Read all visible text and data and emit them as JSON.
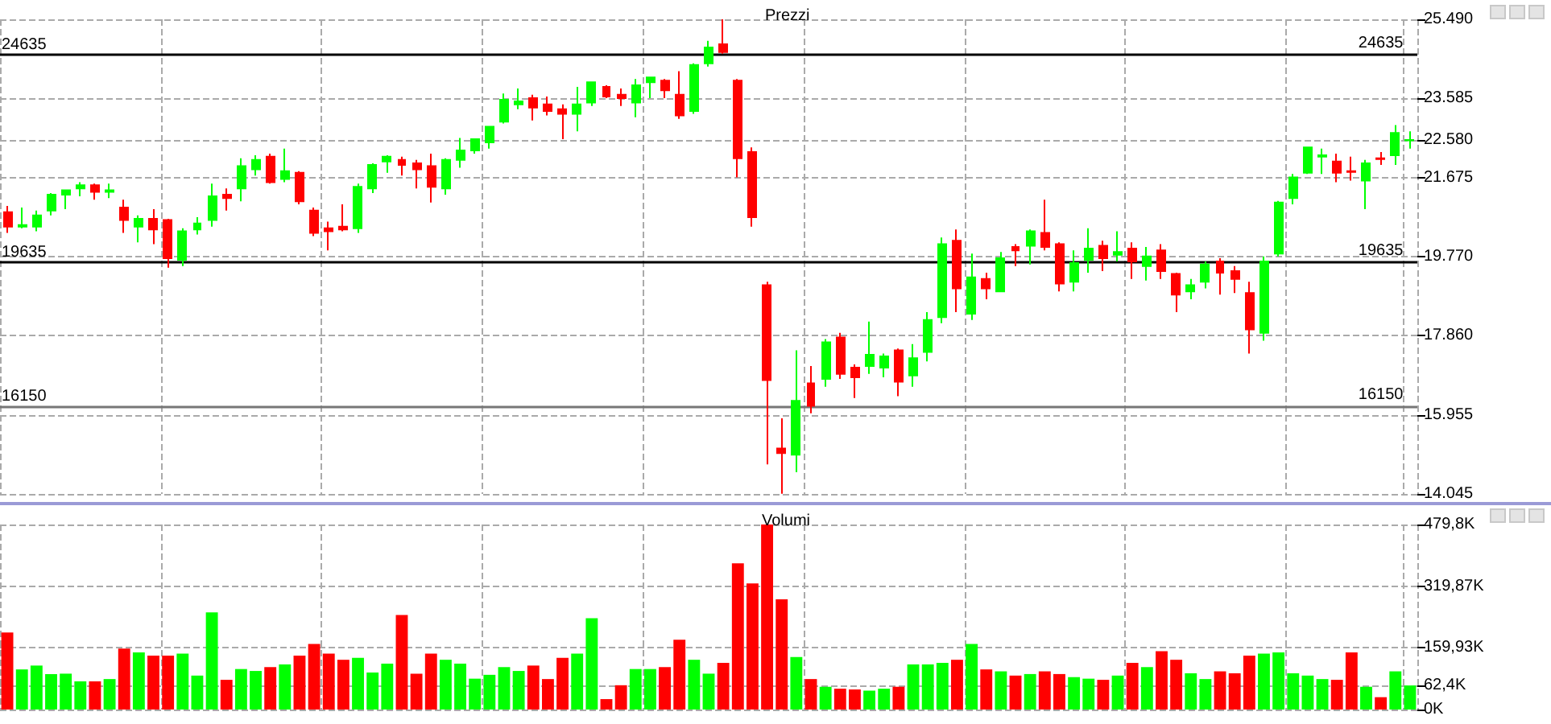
{
  "chart_data": [
    {
      "type": "candlestick",
      "title": "Prezzi",
      "categories": [
        null,
        null,
        null,
        null,
        null,
        null,
        null,
        null,
        null,
        null,
        null,
        null,
        null,
        null,
        null,
        null,
        null,
        null,
        null,
        null,
        null,
        null,
        null,
        null,
        null,
        null,
        null,
        null,
        null,
        null,
        null,
        null,
        null,
        null,
        null,
        null,
        null,
        null,
        null,
        null,
        null,
        null,
        null,
        null,
        null,
        null,
        null,
        null,
        null,
        null,
        null,
        null,
        null,
        null,
        null,
        null,
        null,
        null,
        null,
        null,
        null,
        null,
        null,
        null,
        null,
        null,
        null,
        null,
        null,
        null,
        null,
        null,
        null,
        null,
        null,
        null,
        null,
        null,
        null,
        null,
        null,
        null,
        null,
        null,
        null,
        null,
        null,
        null,
        null,
        null,
        null,
        null,
        null,
        null,
        null,
        null,
        null
      ],
      "ohlc": [
        [
          20840,
          20990,
          20340,
          20490
        ],
        [
          20490,
          20950,
          20450,
          20530
        ],
        [
          20490,
          20880,
          20380,
          20760
        ],
        [
          20880,
          21300,
          20760,
          21260
        ],
        [
          21260,
          21370,
          20910,
          21370
        ],
        [
          21410,
          21560,
          21220,
          21490
        ],
        [
          21490,
          21530,
          21140,
          21330
        ],
        [
          21330,
          21530,
          21180,
          21370
        ],
        [
          20950,
          21140,
          20340,
          20650
        ],
        [
          20490,
          20760,
          20110,
          20680
        ],
        [
          20680,
          20910,
          20070,
          20420
        ],
        [
          20650,
          20680,
          19500,
          19730
        ],
        [
          19690,
          20450,
          19540,
          20380
        ],
        [
          20420,
          20720,
          20300,
          20570
        ],
        [
          20650,
          21530,
          20490,
          21220
        ],
        [
          21260,
          21410,
          20880,
          21180
        ],
        [
          21410,
          22140,
          21100,
          21950
        ],
        [
          21870,
          22210,
          21720,
          22100
        ],
        [
          22180,
          22250,
          21530,
          21560
        ],
        [
          21640,
          22370,
          21560,
          21830
        ],
        [
          21790,
          21830,
          21030,
          21100
        ],
        [
          20880,
          20950,
          20260,
          20340
        ],
        [
          20450,
          20610,
          19920,
          20380
        ],
        [
          20490,
          21030,
          20380,
          20420
        ],
        [
          20450,
          21530,
          20340,
          21450
        ],
        [
          21410,
          22020,
          21300,
          21980
        ],
        [
          22060,
          22210,
          21790,
          22180
        ],
        [
          22100,
          22180,
          21720,
          21980
        ],
        [
          22020,
          22100,
          21410,
          21870
        ],
        [
          21950,
          22250,
          21070,
          21450
        ],
        [
          21410,
          22140,
          21260,
          22100
        ],
        [
          22100,
          22630,
          21910,
          22330
        ],
        [
          22330,
          22600,
          22250,
          22600
        ],
        [
          22520,
          22900,
          22370,
          22900
        ],
        [
          23020,
          23700,
          22980,
          23550
        ],
        [
          23440,
          23820,
          23320,
          23510
        ],
        [
          23590,
          23670,
          23050,
          23360
        ],
        [
          23440,
          23630,
          23170,
          23280
        ],
        [
          23320,
          23440,
          22600,
          23210
        ],
        [
          23210,
          23860,
          22790,
          23440
        ],
        [
          23480,
          23970,
          23400,
          23970
        ],
        [
          23860,
          23900,
          23590,
          23630
        ],
        [
          23670,
          23820,
          23400,
          23590
        ],
        [
          23480,
          24050,
          23130,
          23900
        ],
        [
          23970,
          24090,
          23590,
          24090
        ],
        [
          24010,
          24050,
          23590,
          23780
        ],
        [
          23670,
          24240,
          23090,
          23170
        ],
        [
          23280,
          24430,
          23210,
          24390
        ],
        [
          24430,
          24970,
          24350,
          24810
        ],
        [
          24890,
          25490,
          24660,
          24700
        ],
        [
          24010,
          24050,
          21680,
          22140
        ],
        [
          22290,
          22400,
          20490,
          20720
        ],
        [
          19080,
          19160,
          14760,
          16790
        ],
        [
          15140,
          15870,
          14050,
          15030
        ],
        [
          14990,
          17510,
          14570,
          16290
        ],
        [
          16710,
          17130,
          15990,
          16170
        ],
        [
          16820,
          17780,
          16630,
          17700
        ],
        [
          17820,
          17930,
          16820,
          16940
        ],
        [
          17090,
          17170,
          16360,
          16860
        ],
        [
          17130,
          18200,
          16940,
          17400
        ],
        [
          17090,
          17430,
          16860,
          17360
        ],
        [
          17510,
          17550,
          16400,
          16750
        ],
        [
          16900,
          17660,
          16630,
          17320
        ],
        [
          17470,
          18430,
          17240,
          18240
        ],
        [
          18310,
          20230,
          18160,
          20070
        ],
        [
          20150,
          20420,
          18430,
          19000
        ],
        [
          18390,
          19840,
          18240,
          19270
        ],
        [
          19230,
          19380,
          18740,
          19000
        ],
        [
          18930,
          19880,
          18930,
          19730
        ],
        [
          20000,
          20070,
          19540,
          19920
        ],
        [
          20030,
          20420,
          19580,
          20380
        ],
        [
          20340,
          21140,
          19920,
          20000
        ],
        [
          20070,
          20110,
          18930,
          19120
        ],
        [
          19160,
          19920,
          18930,
          19610
        ],
        [
          19690,
          20450,
          19380,
          19960
        ],
        [
          20030,
          20150,
          19420,
          19730
        ],
        [
          19810,
          20380,
          19650,
          19880
        ],
        [
          19960,
          20110,
          19230,
          19650
        ],
        [
          19540,
          20000,
          19190,
          19770
        ],
        [
          19920,
          20070,
          19230,
          19420
        ],
        [
          19350,
          19380,
          18430,
          18850
        ],
        [
          18930,
          19230,
          18740,
          19080
        ],
        [
          19160,
          19650,
          19000,
          19580
        ],
        [
          19650,
          19730,
          18850,
          19380
        ],
        [
          19420,
          19540,
          18890,
          19230
        ],
        [
          18890,
          19160,
          17430,
          18010
        ],
        [
          17930,
          19770,
          17740,
          19650
        ],
        [
          19840,
          21110,
          19770,
          21070
        ],
        [
          21180,
          21760,
          21030,
          21680
        ],
        [
          21790,
          22400,
          21760,
          22400
        ],
        [
          22180,
          22370,
          21760,
          22210
        ],
        [
          22060,
          22250,
          21560,
          21790
        ],
        [
          21830,
          22180,
          21600,
          21810
        ],
        [
          21600,
          22100,
          20910,
          22020
        ],
        [
          22140,
          22290,
          21980,
          22120
        ],
        [
          22210,
          22940,
          21980,
          22750
        ],
        [
          22570,
          22790,
          22370,
          22580
        ]
      ],
      "colors": [
        "#ff0000",
        "#00ff00",
        "#00ff00",
        "#00ff00",
        "#00ff00",
        "#00ff00",
        "#ff0000",
        "#00ff00",
        "#ff0000",
        "#00ff00",
        "#ff0000",
        "#ff0000",
        "#00ff00",
        "#00ff00",
        "#00ff00",
        "#ff0000",
        "#00ff00",
        "#00ff00",
        "#ff0000",
        "#00ff00",
        "#ff0000",
        "#ff0000",
        "#ff0000",
        "#ff0000",
        "#00ff00",
        "#00ff00",
        "#00ff00",
        "#ff0000",
        "#ff0000",
        "#ff0000",
        "#00ff00",
        "#00ff00",
        "#00ff00",
        "#00ff00",
        "#00ff00",
        "#00ff00",
        "#ff0000",
        "#ff0000",
        "#ff0000",
        "#00ff00",
        "#00ff00",
        "#ff0000",
        "#ff0000",
        "#00ff00",
        "#00ff00",
        "#ff0000",
        "#ff0000",
        "#00ff00",
        "#00ff00",
        "#ff0000",
        "#ff0000",
        "#ff0000",
        "#ff0000",
        "#ff0000",
        "#00ff00",
        "#ff0000",
        "#00ff00",
        "#ff0000",
        "#ff0000",
        "#00ff00",
        "#00ff00",
        "#ff0000",
        "#00ff00",
        "#00ff00",
        "#00ff00",
        "#ff0000",
        "#00ff00",
        "#ff0000",
        "#00ff00",
        "#ff0000",
        "#00ff00",
        "#ff0000",
        "#ff0000",
        "#00ff00",
        "#00ff00",
        "#ff0000",
        "#00ff00",
        "#ff0000",
        "#00ff00",
        "#ff0000",
        "#ff0000",
        "#00ff00",
        "#00ff00",
        "#ff0000",
        "#ff0000",
        "#ff0000",
        "#00ff00",
        "#00ff00",
        "#00ff00",
        "#00ff00",
        "#00ff00",
        "#ff0000",
        "#ff0000",
        "#00ff00",
        "#ff0000",
        "#00ff00",
        "#00ff00"
      ],
      "ylim": [
        14045,
        25490
      ],
      "yticks": [
        {
          "value": 14045,
          "label": "14.045"
        },
        {
          "value": 15955,
          "label": "15.955"
        },
        {
          "value": 17860,
          "label": "17.860"
        },
        {
          "value": 19770,
          "label": "19.770"
        },
        {
          "value": 21675,
          "label": "21.675"
        },
        {
          "value": 22580,
          "label": "22.580"
        },
        {
          "value": 23585,
          "label": "23.585"
        },
        {
          "value": 25490,
          "label": "25.490"
        }
      ],
      "grid": true,
      "ref_lines": [
        {
          "axis": "y",
          "value": 24635,
          "label": "24635",
          "color": "#000000"
        },
        {
          "axis": "y",
          "value": 19635,
          "label": "19635",
          "color": "#000000"
        },
        {
          "axis": "y",
          "value": 16150,
          "label": "16150",
          "color": "#777777"
        }
      ]
    },
    {
      "type": "bar",
      "title": "Volumi",
      "categories": [
        null,
        null,
        null,
        null,
        null,
        null,
        null,
        null,
        null,
        null,
        null,
        null,
        null,
        null,
        null,
        null,
        null,
        null,
        null,
        null,
        null,
        null,
        null,
        null,
        null,
        null,
        null,
        null,
        null,
        null,
        null,
        null,
        null,
        null,
        null,
        null,
        null,
        null,
        null,
        null,
        null,
        null,
        null,
        null,
        null,
        null,
        null,
        null,
        null,
        null,
        null,
        null,
        null,
        null,
        null,
        null,
        null,
        null,
        null,
        null,
        null,
        null,
        null,
        null,
        null,
        null,
        null,
        null,
        null,
        null,
        null,
        null,
        null,
        null,
        null,
        null,
        null,
        null,
        null,
        null,
        null,
        null,
        null,
        null,
        null,
        null,
        null,
        null,
        null,
        null,
        null,
        null,
        null,
        null,
        null,
        null,
        null
      ],
      "values": [
        200,
        104,
        114,
        92,
        93,
        73,
        73,
        79,
        158,
        148,
        140,
        140,
        145,
        88,
        252,
        77,
        105,
        100,
        110,
        117,
        140,
        170,
        145,
        129,
        134,
        96,
        119,
        245,
        93,
        145,
        129,
        119,
        80,
        90,
        110,
        100,
        114,
        79,
        134,
        145,
        237,
        27,
        63,
        105,
        105,
        110,
        181,
        129,
        93,
        121,
        379,
        327,
        479.8,
        286,
        136,
        79,
        59,
        54,
        52,
        49,
        54,
        59,
        117,
        117,
        121,
        129,
        170,
        104,
        99,
        88,
        92,
        99,
        92,
        84,
        80,
        77,
        88,
        121,
        110,
        151,
        129,
        94,
        79,
        99,
        94,
        140,
        145,
        148,
        94,
        88,
        79,
        77,
        148,
        59,
        32,
        99,
        62.4
      ],
      "colors": [
        "#ff0000",
        "#00ff00",
        "#00ff00",
        "#00ff00",
        "#00ff00",
        "#00ff00",
        "#ff0000",
        "#00ff00",
        "#ff0000",
        "#00ff00",
        "#ff0000",
        "#ff0000",
        "#00ff00",
        "#00ff00",
        "#00ff00",
        "#ff0000",
        "#00ff00",
        "#00ff00",
        "#ff0000",
        "#00ff00",
        "#ff0000",
        "#ff0000",
        "#ff0000",
        "#ff0000",
        "#00ff00",
        "#00ff00",
        "#00ff00",
        "#ff0000",
        "#ff0000",
        "#ff0000",
        "#00ff00",
        "#00ff00",
        "#00ff00",
        "#00ff00",
        "#00ff00",
        "#00ff00",
        "#ff0000",
        "#ff0000",
        "#ff0000",
        "#00ff00",
        "#00ff00",
        "#ff0000",
        "#ff0000",
        "#00ff00",
        "#00ff00",
        "#ff0000",
        "#ff0000",
        "#00ff00",
        "#00ff00",
        "#ff0000",
        "#ff0000",
        "#ff0000",
        "#ff0000",
        "#ff0000",
        "#00ff00",
        "#ff0000",
        "#00ff00",
        "#ff0000",
        "#ff0000",
        "#00ff00",
        "#00ff00",
        "#ff0000",
        "#00ff00",
        "#00ff00",
        "#00ff00",
        "#ff0000",
        "#00ff00",
        "#ff0000",
        "#00ff00",
        "#ff0000",
        "#00ff00",
        "#ff0000",
        "#ff0000",
        "#00ff00",
        "#00ff00",
        "#ff0000",
        "#00ff00",
        "#ff0000",
        "#00ff00",
        "#ff0000",
        "#ff0000",
        "#00ff00",
        "#00ff00",
        "#ff0000",
        "#ff0000",
        "#ff0000",
        "#00ff00",
        "#00ff00",
        "#00ff00",
        "#00ff00",
        "#00ff00",
        "#ff0000",
        "#ff0000",
        "#00ff00",
        "#ff0000",
        "#00ff00",
        "#00ff00"
      ],
      "ylim": [
        0,
        479.8
      ],
      "yticks": [
        {
          "value": 0,
          "label": "0K"
        },
        {
          "value": 62.4,
          "label": "62,4K"
        },
        {
          "value": 159.93,
          "label": "159,93K"
        },
        {
          "value": 319.87,
          "label": "319,87K"
        },
        {
          "value": 479.8,
          "label": "479,8K"
        }
      ],
      "grid": true
    }
  ]
}
